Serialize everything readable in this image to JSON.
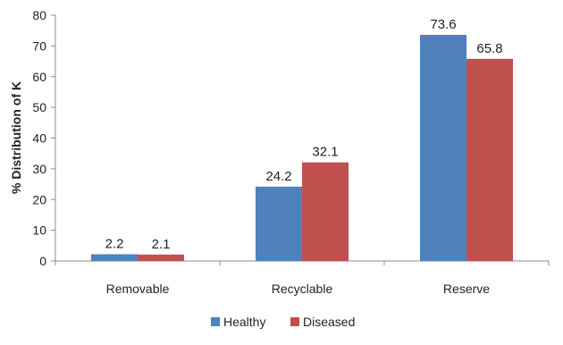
{
  "chart_data": {
    "type": "bar",
    "title": "",
    "xlabel": "",
    "ylabel": "% Distribution of K",
    "ylim": [
      0,
      80
    ],
    "yticks": [
      0,
      10,
      20,
      30,
      40,
      50,
      60,
      70,
      80
    ],
    "categories": [
      "Removable",
      "Recyclable",
      "Reserve"
    ],
    "series": [
      {
        "name": "Healthy",
        "color": "#4F81BD",
        "values": [
          2.2,
          24.2,
          73.6
        ]
      },
      {
        "name": "Diseased",
        "color": "#C0504D",
        "values": [
          2.1,
          32.1,
          65.8
        ]
      }
    ],
    "grid": false,
    "legend_position": "bottom"
  }
}
